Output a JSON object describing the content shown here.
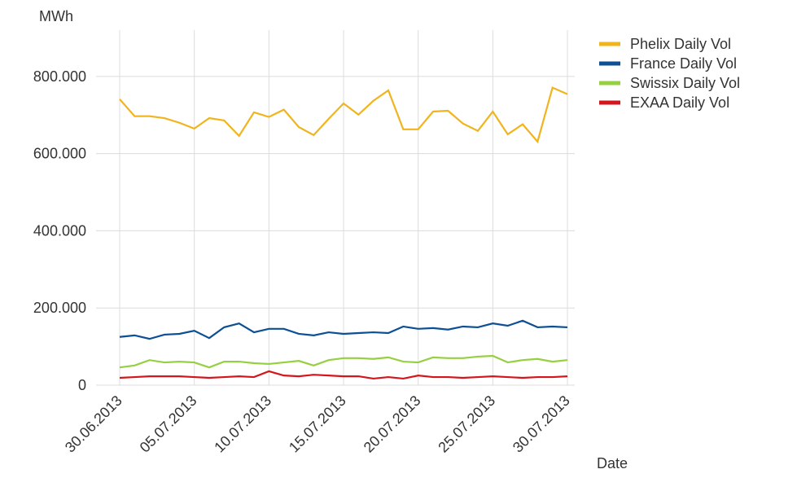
{
  "chart_data": {
    "type": "line",
    "y_label": "MWh",
    "x_label": "Date",
    "categories": [
      "30.06.2013",
      null,
      null,
      null,
      null,
      "05.07.2013",
      null,
      null,
      null,
      null,
      "10.07.2013",
      null,
      null,
      null,
      null,
      "15.07.2013",
      null,
      null,
      null,
      null,
      "20.07.2013",
      null,
      null,
      null,
      null,
      "25.07.2013",
      null,
      null,
      null,
      null,
      "30.07.2013"
    ],
    "series": [
      {
        "name": "Phelix Daily Vol",
        "color": "#f0b41e",
        "values": [
          741000,
          697000,
          697000,
          692000,
          680000,
          665000,
          692000,
          686000,
          646000,
          707000,
          695000,
          714000,
          669000,
          648000,
          690000,
          730000,
          701000,
          737000,
          764000,
          663000,
          663000,
          709000,
          711000,
          678000,
          659000,
          709000,
          650000,
          676000,
          631000,
          771000,
          754000
        ]
      },
      {
        "name": "France Daily Vol",
        "color": "#0d4f94",
        "values": [
          125000,
          129000,
          120000,
          131000,
          133000,
          141000,
          122000,
          150000,
          160000,
          137000,
          146000,
          146000,
          133000,
          129000,
          137000,
          133000,
          135000,
          137000,
          135000,
          152000,
          146000,
          148000,
          144000,
          152000,
          150000,
          160000,
          154000,
          167000,
          150000,
          152000,
          150000
        ]
      },
      {
        "name": "Swissix Daily Vol",
        "color": "#96d040",
        "values": [
          46000,
          51000,
          65000,
          59000,
          61000,
          59000,
          46000,
          61000,
          61000,
          57000,
          55000,
          59000,
          63000,
          51000,
          65000,
          70000,
          70000,
          68000,
          72000,
          61000,
          59000,
          72000,
          70000,
          70000,
          74000,
          76000,
          59000,
          65000,
          68000,
          61000,
          65000
        ]
      },
      {
        "name": "EXAA Daily Vol",
        "color": "#d4161c",
        "values": [
          19000,
          21000,
          23000,
          23000,
          23000,
          21000,
          19000,
          21000,
          23000,
          21000,
          36000,
          25000,
          23000,
          27000,
          25000,
          23000,
          23000,
          17000,
          21000,
          17000,
          25000,
          21000,
          21000,
          19000,
          21000,
          23000,
          21000,
          19000,
          21000,
          21000,
          23000
        ]
      }
    ],
    "ylim": [
      0,
      920000
    ],
    "yticks": [
      0,
      {
        "value": 200000,
        "label": "200.000"
      },
      {
        "value": 400000,
        "label": "400.000"
      },
      {
        "value": 600000,
        "label": "600.000"
      },
      {
        "value": 800000,
        "label": "800.000"
      }
    ],
    "grid": true,
    "legend": "top-right"
  }
}
